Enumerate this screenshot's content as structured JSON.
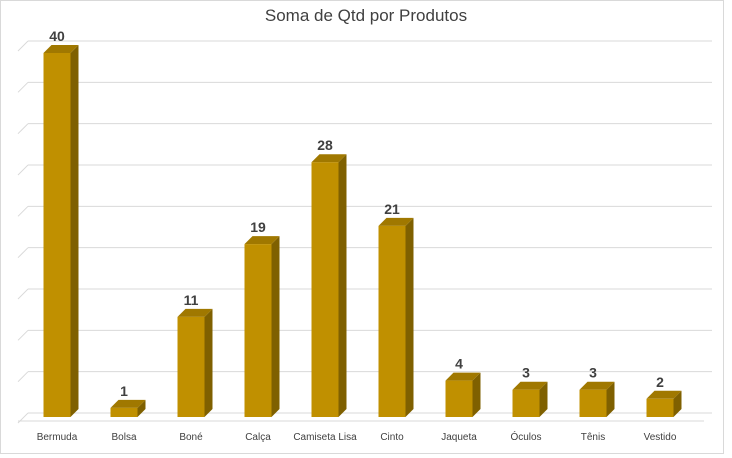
{
  "chart_data": {
    "type": "bar",
    "title": "Soma de Qtd por Produtos",
    "categories": [
      "Bermuda",
      "Bolsa",
      "Boné",
      "Calça",
      "Camiseta Lisa",
      "Cinto",
      "Jaqueta",
      "Óculos",
      "Tênis",
      "Vestido"
    ],
    "values": [
      40,
      1,
      11,
      19,
      28,
      21,
      4,
      3,
      3,
      2
    ],
    "xlabel": "",
    "ylabel": "",
    "ylim": [
      0,
      40
    ],
    "grid": true,
    "legend": "none",
    "style": "3d-column",
    "colors": {
      "front": "#C09000",
      "side": "#7F6000",
      "top": "#A07800",
      "grid": "#d9d9d9",
      "text": "#404040"
    }
  }
}
